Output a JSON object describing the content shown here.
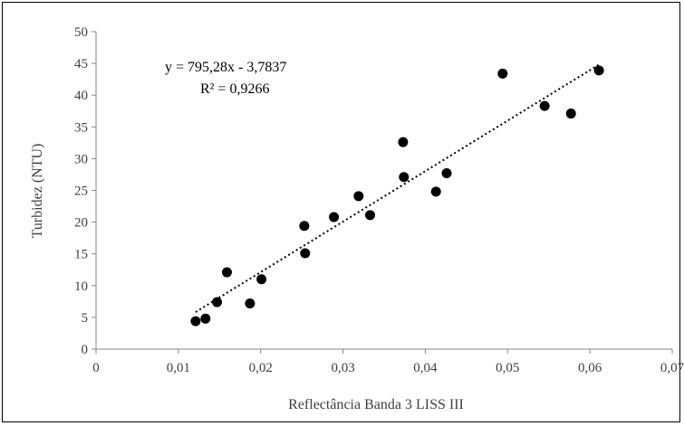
{
  "chart_data": {
    "type": "scatter",
    "title": "",
    "xlabel": "Reflectância Banda 3 LISS III",
    "ylabel": "Turbidez (NTU)",
    "xlim": [
      0,
      0.07
    ],
    "ylim": [
      0,
      50
    ],
    "x_ticks": [
      0,
      0.01,
      0.02,
      0.03,
      0.04,
      0.05,
      0.06,
      0.07
    ],
    "x_tick_labels": [
      "0",
      "0,01",
      "0,02",
      "0,03",
      "0,04",
      "0,05",
      "0,06",
      "0,07"
    ],
    "y_ticks": [
      0,
      5,
      10,
      15,
      20,
      25,
      30,
      35,
      40,
      45,
      50
    ],
    "y_tick_labels": [
      "0",
      "5",
      "10",
      "15",
      "20",
      "25",
      "30",
      "35",
      "40",
      "45",
      "50"
    ],
    "grid": false,
    "legend": "none",
    "marker_color": "#000000",
    "points": [
      {
        "x": 0.0121,
        "y": 4.4
      },
      {
        "x": 0.0133,
        "y": 4.8
      },
      {
        "x": 0.0147,
        "y": 7.4
      },
      {
        "x": 0.0159,
        "y": 12.1
      },
      {
        "x": 0.0187,
        "y": 7.2
      },
      {
        "x": 0.0201,
        "y": 11.0
      },
      {
        "x": 0.0253,
        "y": 19.4
      },
      {
        "x": 0.0254,
        "y": 15.1
      },
      {
        "x": 0.0289,
        "y": 20.8
      },
      {
        "x": 0.0319,
        "y": 24.1
      },
      {
        "x": 0.0333,
        "y": 21.1
      },
      {
        "x": 0.0373,
        "y": 32.6
      },
      {
        "x": 0.0374,
        "y": 27.1
      },
      {
        "x": 0.0413,
        "y": 24.8
      },
      {
        "x": 0.0426,
        "y": 27.7
      },
      {
        "x": 0.0494,
        "y": 43.4
      },
      {
        "x": 0.0545,
        "y": 38.3
      },
      {
        "x": 0.0577,
        "y": 37.1
      },
      {
        "x": 0.0611,
        "y": 43.9
      }
    ],
    "trendline": {
      "type": "linear",
      "slope": 795.28,
      "intercept": -3.7837,
      "x_range": [
        0.0121,
        0.0611
      ],
      "style": "dotted",
      "color": "#000000"
    },
    "annotations": {
      "equation": "y = 795,28x - 3,7837",
      "r_squared": "R² = 0,9266"
    }
  }
}
